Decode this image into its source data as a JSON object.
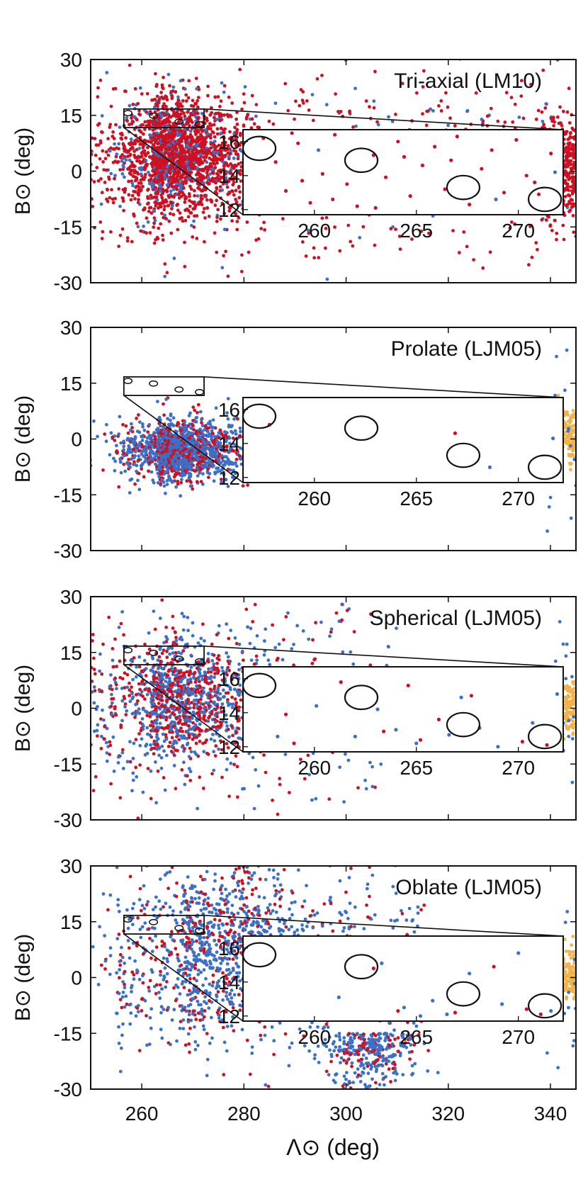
{
  "chart_data": {
    "type": "scatter",
    "shared": {
      "xlabel": "Λ⊙ (deg)",
      "ylabel": "B⊙ (deg)",
      "xlim": [
        250,
        345
      ],
      "ylim": [
        -30,
        30
      ],
      "xticks": [
        260,
        280,
        300,
        320,
        340
      ],
      "yticks": [
        30,
        15,
        0,
        -15,
        -30
      ],
      "colors": {
        "red": "#cc1122",
        "blue": "#3a70c8",
        "orange": "#f2b24a"
      }
    },
    "inset": {
      "xlim": [
        256.5,
        272.2
      ],
      "ylim": [
        11.7,
        16.7
      ],
      "zoom_box": {
        "x": [
          256.5,
          272.2
        ],
        "y": [
          11.7,
          16.7
        ]
      },
      "xticks": [
        260,
        265,
        270
      ],
      "yticks": [
        16,
        14,
        12
      ],
      "ellipses": [
        {
          "x": 257.3,
          "y": 15.6,
          "rx": 0.8,
          "ry": 0.7
        },
        {
          "x": 262.3,
          "y": 14.9,
          "rx": 0.8,
          "ry": 0.7
        },
        {
          "x": 267.3,
          "y": 13.3,
          "rx": 0.8,
          "ry": 0.7
        },
        {
          "x": 271.3,
          "y": 12.6,
          "rx": 0.8,
          "ry": 0.7
        }
      ]
    },
    "panels": [
      {
        "title": "Tri-axial (LM10)",
        "main": {
          "red": 0.82,
          "blue": 0.18,
          "center": [
            262,
            4
          ],
          "spread": [
            9,
            8
          ],
          "extra": "band"
        },
        "inset_points": {
          "red": [
            [
              257.5,
              16.2
            ],
            [
              258.1,
              14.8
            ],
            [
              258.6,
              13.1
            ],
            [
              259.2,
              15.9
            ],
            [
              259.8,
              12.4
            ],
            [
              260.4,
              14.1
            ],
            [
              261.0,
              16.4
            ],
            [
              261.6,
              13.5
            ],
            [
              262.1,
              12.2
            ],
            [
              262.9,
              15.2
            ],
            [
              263.5,
              13.9
            ],
            [
              264.1,
              16.0
            ],
            [
              264.7,
              12.8
            ],
            [
              265.3,
              14.6
            ],
            [
              265.9,
              15.7
            ],
            [
              266.4,
              13.2
            ],
            [
              267.0,
              16.3
            ],
            [
              267.6,
              12.3
            ],
            [
              268.2,
              14.4
            ],
            [
              268.7,
              15.5
            ],
            [
              269.3,
              13.0
            ],
            [
              269.9,
              16.1
            ],
            [
              270.4,
              14.0
            ],
            [
              271.0,
              12.9
            ],
            [
              271.6,
              15.3
            ],
            [
              258.9,
              16.5
            ],
            [
              260.9,
              12.6
            ],
            [
              263.0,
              12.1
            ],
            [
              266.7,
              14.9
            ],
            [
              270.8,
              13.6
            ],
            [
              259.4,
              13.7
            ],
            [
              264.4,
              15.1
            ]
          ],
          "blue": [
            [
              260.2,
              15.5
            ],
            [
              268.9,
              12.6
            ],
            [
              271.8,
              14.2
            ]
          ]
        },
        "orange": false
      },
      {
        "title": "Prolate (LJM05)",
        "main": {
          "red": 0.35,
          "blue": 0.65,
          "center": [
            263,
            -3
          ],
          "spread": [
            8,
            4
          ],
          "extra": "none"
        },
        "inset_points": {
          "red": [
            [
              257.8,
              15.1
            ],
            [
              266.9,
              14.6
            ]
          ],
          "blue": [
            [
              268.6,
              12.6
            ],
            [
              271.7,
              14.3
            ]
          ]
        },
        "orange": true
      },
      {
        "title": "Spherical (LJM05)",
        "main": {
          "red": 0.45,
          "blue": 0.55,
          "center": [
            262,
            3
          ],
          "spread": [
            10,
            8
          ],
          "extra": "none"
        },
        "inset_points": {
          "red": [
            [
              259.0,
              12.2
            ],
            [
              261.3,
              15.8
            ],
            [
              263.4,
              12.9
            ],
            [
              265.2,
              12.4
            ],
            [
              266.1,
              13.6
            ],
            [
              267.7,
              15.0
            ],
            [
              270.2,
              12.3
            ],
            [
              271.4,
              12.1
            ],
            [
              264.6,
              15.6
            ],
            [
              258.6,
              13.9
            ]
          ],
          "blue": [
            [
              260.1,
              14.4
            ],
            [
              262.0,
              12.6
            ],
            [
              263.1,
              14.2
            ],
            [
              264.0,
              13.0
            ],
            [
              265.0,
              12.2
            ],
            [
              266.6,
              12.7
            ],
            [
              268.1,
              13.1
            ],
            [
              269.0,
              12.0
            ],
            [
              270.7,
              13.4
            ],
            [
              271.9,
              15.1
            ],
            [
              267.2,
              14.9
            ],
            [
              258.2,
              12.6
            ]
          ]
        },
        "orange": true
      },
      {
        "title": "Oblate (LJM05)",
        "main": {
          "red": 0.3,
          "blue": 0.7,
          "center": [
            268,
            8
          ],
          "spread": [
            14,
            12
          ],
          "extra": "plume"
        },
        "inset_points": {
          "red": [
            [
              262.9,
              14.8
            ],
            [
              264.1,
              12.3
            ],
            [
              266.9,
              12.2
            ],
            [
              268.8,
              14.9
            ],
            [
              270.4,
              12.4
            ],
            [
              271.1,
              12.1
            ]
          ],
          "blue": [
            [
              263.3,
              15.1
            ],
            [
              264.4,
              12.5
            ],
            [
              265.2,
              12.0
            ],
            [
              265.8,
              12.9
            ],
            [
              266.5,
              12.1
            ],
            [
              267.6,
              14.5
            ],
            [
              269.2,
              12.7
            ],
            [
              271.6,
              12.3
            ],
            [
              270.0,
              15.7
            ],
            [
              261.2,
              13.1
            ]
          ]
        },
        "orange": true
      }
    ]
  }
}
